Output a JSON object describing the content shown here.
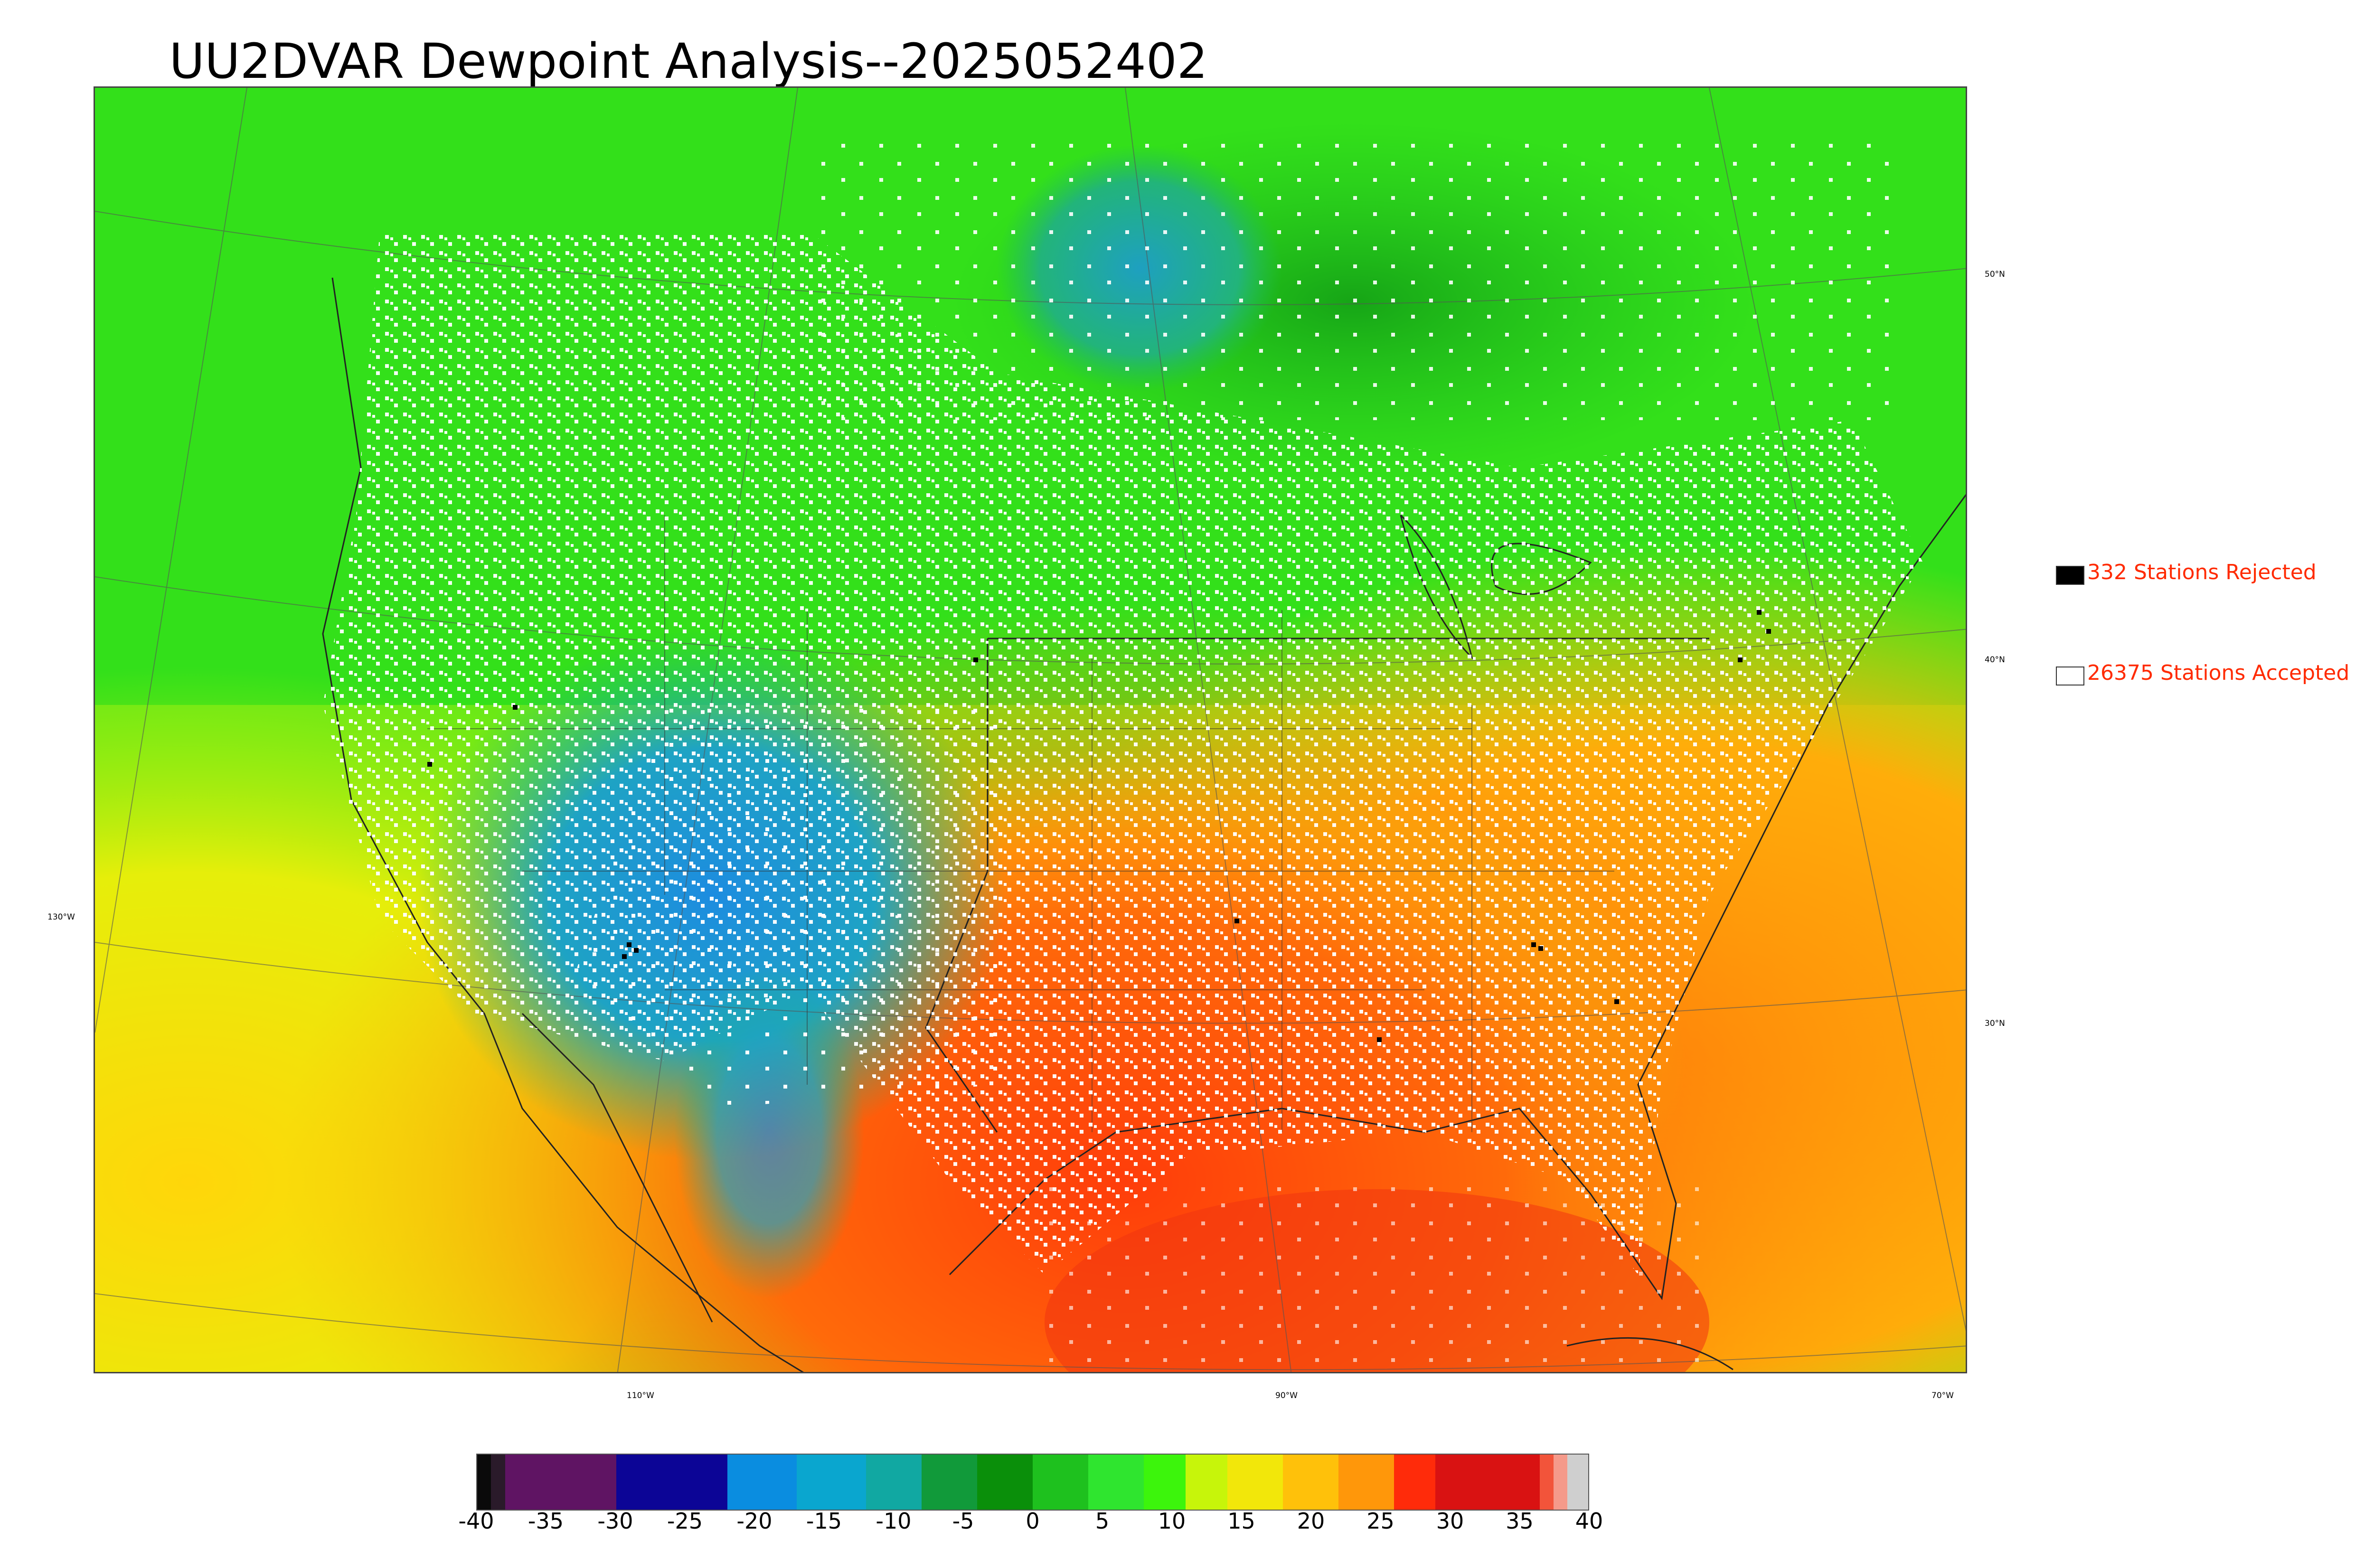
{
  "title": "UU2DVAR Dewpoint Analysis--2025052402",
  "map": {
    "lat_labels": [
      "50°N",
      "40°N",
      "30°N"
    ],
    "lon_labels": [
      "130°W",
      "110°W",
      "90°W",
      "70°W"
    ]
  },
  "legend": {
    "rejected": {
      "label": "332 Stations Rejected",
      "color": "#000000"
    },
    "accepted": {
      "label": "26375 Stations Accepted",
      "color": "#ffffff"
    }
  },
  "colorbar": {
    "min": -40,
    "max": 40,
    "tick_labels": [
      "-40",
      "-35",
      "-30",
      "-25",
      "-20",
      "-15",
      "-10",
      "-5",
      "0",
      "5",
      "10",
      "15",
      "20",
      "25",
      "30",
      "35",
      "40"
    ],
    "segments": [
      {
        "from": -40,
        "to": -39,
        "color": "#0a0a0a"
      },
      {
        "from": -39,
        "to": -38,
        "color": "#2a1a2a"
      },
      {
        "from": -38,
        "to": -30,
        "color": "#5f1463"
      },
      {
        "from": -30,
        "to": -22,
        "color": "#0c0596"
      },
      {
        "from": -22,
        "to": -17,
        "color": "#0a8de0"
      },
      {
        "from": -17,
        "to": -12,
        "color": "#0aa6cf"
      },
      {
        "from": -12,
        "to": -8,
        "color": "#11a8a2"
      },
      {
        "from": -8,
        "to": -4,
        "color": "#119a3a"
      },
      {
        "from": -4,
        "to": 0,
        "color": "#0a8f0a"
      },
      {
        "from": 0,
        "to": 4,
        "color": "#1ec11e"
      },
      {
        "from": 4,
        "to": 8,
        "color": "#2fe52f"
      },
      {
        "from": 8,
        "to": 11,
        "color": "#3cf50c"
      },
      {
        "from": 11,
        "to": 14,
        "color": "#c7f50a"
      },
      {
        "from": 14,
        "to": 18,
        "color": "#f2e70a"
      },
      {
        "from": 18,
        "to": 22,
        "color": "#ffc10a"
      },
      {
        "from": 22,
        "to": 26,
        "color": "#ff970a"
      },
      {
        "from": 26,
        "to": 29,
        "color": "#ff2b0a"
      },
      {
        "from": 29,
        "to": 36.5,
        "color": "#d91212"
      },
      {
        "from": 36.5,
        "to": 37.5,
        "color": "#f2543a"
      },
      {
        "from": 37.5,
        "to": 38.5,
        "color": "#f59a8a"
      },
      {
        "from": 38.5,
        "to": 40,
        "color": "#cfcfcf"
      }
    ]
  }
}
